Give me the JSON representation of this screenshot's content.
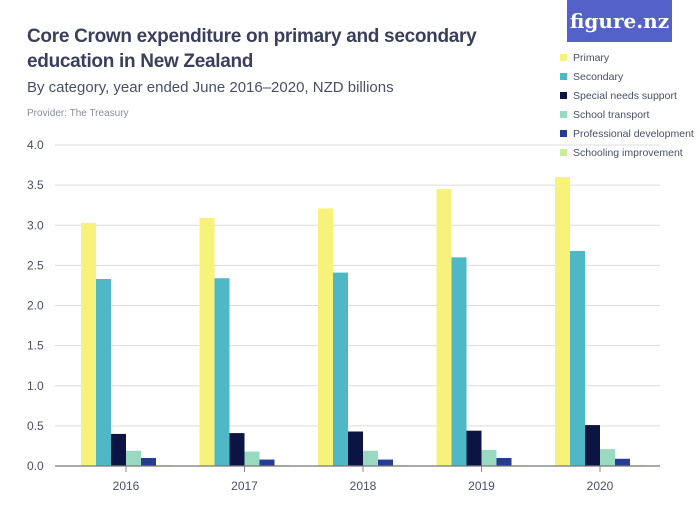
{
  "logo": "figure.nz",
  "chart_data": {
    "type": "bar",
    "title": "Core Crown expenditure on primary and secondary education in New Zealand",
    "subtitle": "By category, year ended June 2016–2020, NZD billions",
    "provider": "Provider: The Treasury",
    "categories": [
      "2016",
      "2017",
      "2018",
      "2019",
      "2020"
    ],
    "ylim": [
      0,
      4.0
    ],
    "yticks": [
      "0.0",
      "0.5",
      "1.0",
      "1.5",
      "2.0",
      "2.5",
      "3.0",
      "3.5",
      "4.0"
    ],
    "grid": true,
    "legend_position": "top-right",
    "series": [
      {
        "name": "Primary",
        "color": "#f7f27a",
        "values": [
          3.03,
          3.09,
          3.21,
          3.45,
          3.6
        ]
      },
      {
        "name": "Secondary",
        "color": "#4eb8c6",
        "values": [
          2.33,
          2.34,
          2.41,
          2.6,
          2.68
        ]
      },
      {
        "name": "Special needs support",
        "color": "#0c1444",
        "values": [
          0.4,
          0.41,
          0.43,
          0.44,
          0.51
        ]
      },
      {
        "name": "School transport",
        "color": "#98d9bf",
        "values": [
          0.19,
          0.18,
          0.19,
          0.2,
          0.21
        ]
      },
      {
        "name": "Professional development",
        "color": "#243c94",
        "values": [
          0.1,
          0.08,
          0.08,
          0.1,
          0.09
        ]
      },
      {
        "name": "Schooling improvement",
        "color": "#c8ee9a",
        "values": [
          0.01,
          0.01,
          0.01,
          0.01,
          0.01
        ]
      }
    ]
  }
}
